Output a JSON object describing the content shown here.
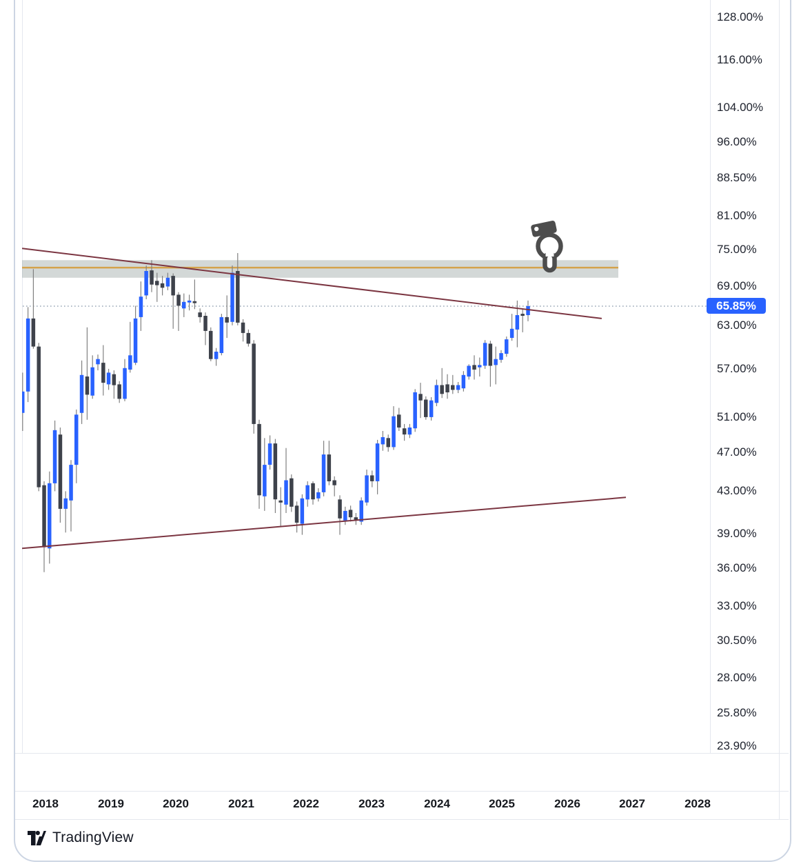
{
  "chart_data": {
    "type": "candlestick",
    "title": "",
    "unit": "percent",
    "scale": "logarithmic",
    "timeframe": "monthly",
    "start_month": "2017-09",
    "ohlc_legend": [
      "open",
      "high",
      "low",
      "close"
    ],
    "candles": [
      [
        51.5,
        56.5,
        49.4,
        54.1
      ],
      [
        54.1,
        65.7,
        52.8,
        64.0
      ],
      [
        64.0,
        71.7,
        59.7,
        60.0
      ],
      [
        60.0,
        60.5,
        43.0,
        43.4
      ],
      [
        43.6,
        44.0,
        35.7,
        37.8
      ],
      [
        37.7,
        45.0,
        36.4,
        43.8
      ],
      [
        43.8,
        50.6,
        43.0,
        49.5
      ],
      [
        49.0,
        49.8,
        40.0,
        41.3
      ],
      [
        41.3,
        43.0,
        39.1,
        42.3
      ],
      [
        42.1,
        46.2,
        39.2,
        45.7
      ],
      [
        45.7,
        51.9,
        43.8,
        51.3
      ],
      [
        51.5,
        58.1,
        50.2,
        56.2
      ],
      [
        56.0,
        62.7,
        50.7,
        53.7
      ],
      [
        53.6,
        58.8,
        53.2,
        57.2
      ],
      [
        57.6,
        58.9,
        56.8,
        58.3
      ],
      [
        57.8,
        60.2,
        53.6,
        55.2
      ],
      [
        55.0,
        57.0,
        54.3,
        56.5
      ],
      [
        56.3,
        56.8,
        53.2,
        54.9
      ],
      [
        55.0,
        55.4,
        52.7,
        53.2
      ],
      [
        53.2,
        58.3,
        52.9,
        57.1
      ],
      [
        56.9,
        63.5,
        56.5,
        58.8
      ],
      [
        57.8,
        65.9,
        57.5,
        64.0
      ],
      [
        64.2,
        69.7,
        62.2,
        67.3
      ],
      [
        67.5,
        72.3,
        66.9,
        71.4
      ],
      [
        71.5,
        73.2,
        68.0,
        69.2
      ],
      [
        69.8,
        71.1,
        66.5,
        69.1
      ],
      [
        69.4,
        70.6,
        67.5,
        68.7
      ],
      [
        68.9,
        71.1,
        68.3,
        70.3
      ],
      [
        70.6,
        71.0,
        62.5,
        67.5
      ],
      [
        67.6,
        68.0,
        62.2,
        65.9
      ],
      [
        65.5,
        67.8,
        64.2,
        66.5
      ],
      [
        66.4,
        67.6,
        65.2,
        66.7
      ],
      [
        66.6,
        70.0,
        65.4,
        66.3
      ],
      [
        64.9,
        65.5,
        63.4,
        64.2
      ],
      [
        64.4,
        64.9,
        60.2,
        62.2
      ],
      [
        62.2,
        62.7,
        58.0,
        58.3
      ],
      [
        58.3,
        59.8,
        57.4,
        59.3
      ],
      [
        59.1,
        64.7,
        58.8,
        64.2
      ],
      [
        64.2,
        67.5,
        61.2,
        63.4
      ],
      [
        63.5,
        72.3,
        63.0,
        71.1
      ],
      [
        71.4,
        74.4,
        63.0,
        63.4
      ],
      [
        63.4,
        63.9,
        60.7,
        61.9
      ],
      [
        61.9,
        62.4,
        60.0,
        60.4
      ],
      [
        60.4,
        60.9,
        49.1,
        50.2
      ],
      [
        50.2,
        50.7,
        41.3,
        42.6
      ],
      [
        42.5,
        48.6,
        41.1,
        45.7
      ],
      [
        45.7,
        48.9,
        45.2,
        48.0
      ],
      [
        48.0,
        48.5,
        40.9,
        42.2
      ],
      [
        42.1,
        43.4,
        39.6,
        41.9
      ],
      [
        41.7,
        47.5,
        40.9,
        44.1
      ],
      [
        44.3,
        44.7,
        41.0,
        41.5
      ],
      [
        41.6,
        42.0,
        39.1,
        40.0
      ],
      [
        39.9,
        42.7,
        38.9,
        42.3
      ],
      [
        42.2,
        44.0,
        41.5,
        43.6
      ],
      [
        43.8,
        44.0,
        41.7,
        42.2
      ],
      [
        42.3,
        43.3,
        42.0,
        42.9
      ],
      [
        42.9,
        48.3,
        42.5,
        46.8
      ],
      [
        46.8,
        48.3,
        43.6,
        44.0
      ],
      [
        44.1,
        44.5,
        42.5,
        43.6
      ],
      [
        42.2,
        42.6,
        38.9,
        40.4
      ],
      [
        40.2,
        41.5,
        39.8,
        41.1
      ],
      [
        41.2,
        41.6,
        40.1,
        40.5
      ],
      [
        40.5,
        40.9,
        39.8,
        40.2
      ],
      [
        40.1,
        42.4,
        39.8,
        42.1
      ],
      [
        41.9,
        45.2,
        41.6,
        44.6
      ],
      [
        44.6,
        45.1,
        43.4,
        44.0
      ],
      [
        44.0,
        48.4,
        42.7,
        48.0
      ],
      [
        47.9,
        49.4,
        47.2,
        48.7
      ],
      [
        48.6,
        49.0,
        47.1,
        47.6
      ],
      [
        47.6,
        52.3,
        47.3,
        51.1
      ],
      [
        51.3,
        52.1,
        49.4,
        49.8
      ],
      [
        49.7,
        50.2,
        48.3,
        49.0
      ],
      [
        49.0,
        50.2,
        48.6,
        49.8
      ],
      [
        49.7,
        54.4,
        49.3,
        54.0
      ],
      [
        53.8,
        55.2,
        50.9,
        53.0
      ],
      [
        53.1,
        53.5,
        50.7,
        51.0
      ],
      [
        51.0,
        53.4,
        50.6,
        53.0
      ],
      [
        52.7,
        55.6,
        52.3,
        54.9
      ],
      [
        54.9,
        57.1,
        53.3,
        53.8
      ],
      [
        55.0,
        56.3,
        53.2,
        54.0
      ],
      [
        54.9,
        56.2,
        53.8,
        54.3
      ],
      [
        54.3,
        55.3,
        53.9,
        54.9
      ],
      [
        54.5,
        56.7,
        54.1,
        56.2
      ],
      [
        56.0,
        57.6,
        55.6,
        57.4
      ],
      [
        57.5,
        58.8,
        55.6,
        56.9
      ],
      [
        57.2,
        58.5,
        56.0,
        57.5
      ],
      [
        57.4,
        60.9,
        57.0,
        60.5
      ],
      [
        60.4,
        60.8,
        54.7,
        57.4
      ],
      [
        57.5,
        60.0,
        55.0,
        58.3
      ],
      [
        58.2,
        59.5,
        57.8,
        59.1
      ],
      [
        59.0,
        61.4,
        58.6,
        61.0
      ],
      [
        61.2,
        64.7,
        60.8,
        62.5
      ],
      [
        62.4,
        66.7,
        59.9,
        64.5
      ],
      [
        64.7,
        65.5,
        62.0,
        64.4
      ],
      [
        64.5,
        66.7,
        63.6,
        65.85
      ]
    ],
    "last_price": 65.85,
    "up_color": "#2962FF",
    "down_color": "#3E424B",
    "wick_color": "#808080",
    "y_axis": {
      "tick_values": [
        128,
        116,
        104,
        96,
        88.5,
        81,
        75,
        69,
        63,
        57,
        51,
        47,
        43,
        39,
        36,
        33,
        30.5,
        28,
        25.8,
        23.9
      ],
      "tick_labels": [
        "128.00%",
        "116.00%",
        "104.00%",
        "96.00%",
        "88.50%",
        "81.00%",
        "75.00%",
        "69.00%",
        "63.00%",
        "57.00%",
        "51.00%",
        "47.00%",
        "43.00%",
        "39.00%",
        "36.00%",
        "33.00%",
        "30.50%",
        "28.00%",
        "25.80%",
        "23.90%"
      ]
    },
    "x_axis": {
      "year_labels": [
        "2018",
        "2019",
        "2020",
        "2021",
        "2022",
        "2023",
        "2024",
        "2025",
        "2026",
        "2027",
        "2028"
      ]
    },
    "annotations": {
      "current_price_line": {
        "value": 65.85,
        "style": "dotted",
        "color": "#98a6b5"
      },
      "resistance_band": {
        "top_value": 73.2,
        "bottom_value": 70.3,
        "fill": "rgba(150,163,160,0.42)",
        "to_month": 106.8
      },
      "band_inner_line": {
        "value": 71.95,
        "color": "#D4A24B",
        "to_month": 106.8
      },
      "descending_trendline": {
        "color": "#7B3541",
        "from": {
          "month": -4.1,
          "value": 75.2
        },
        "to": {
          "month": 103.7,
          "value": 64.0
        }
      },
      "ascending_trendline": {
        "color": "#7B3541",
        "from": {
          "month": -4.1,
          "value": 37.7
        },
        "to": {
          "month": 108.2,
          "value": 42.4
        }
      },
      "sticker": {
        "name": "pointing-down-hand-icon",
        "color": "#4D4D4D"
      }
    }
  },
  "price_axis": {
    "current_price_badge": "65.85%",
    "badge_color": "#2962FF"
  },
  "footer": {
    "brand_name": "TradingView"
  }
}
